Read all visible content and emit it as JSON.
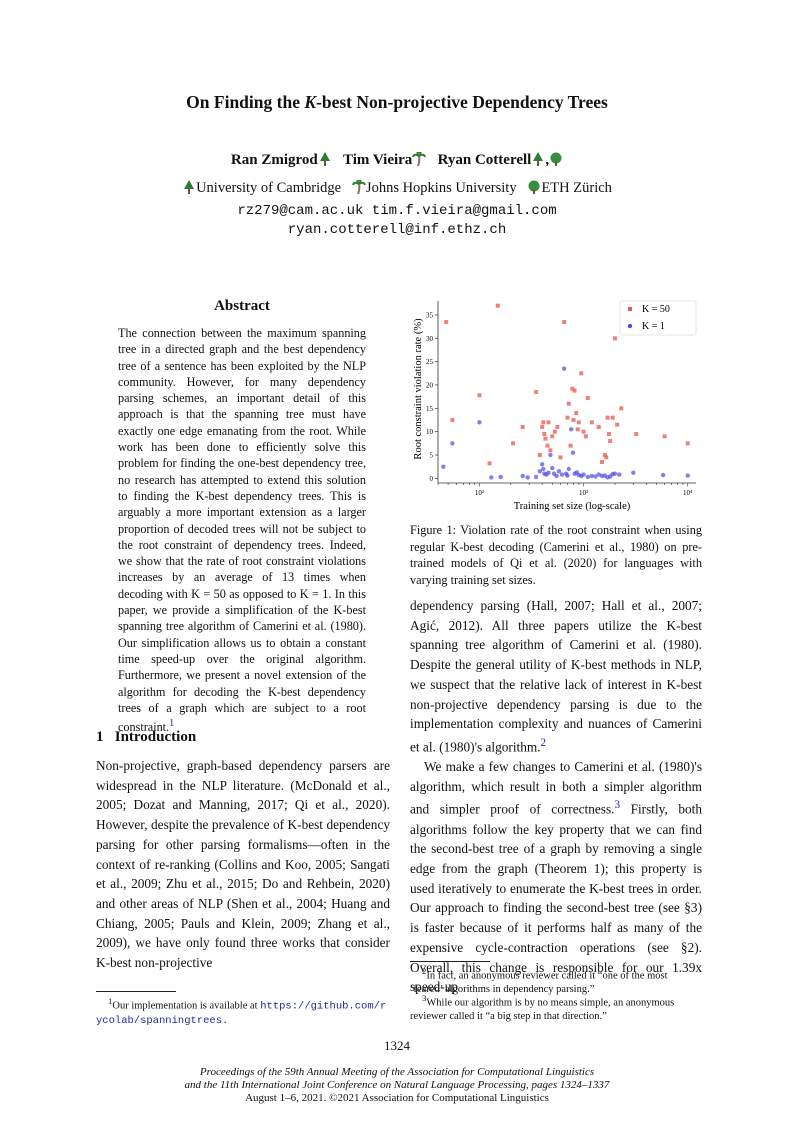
{
  "title": "On Finding the K-best Non-projective Dependency Trees",
  "authors": [
    "Ran Zmigrod",
    "Tim Vieira",
    "Ryan Cotterell"
  ],
  "affiliations": [
    "University of Cambridge",
    "Johns Hopkins University",
    "ETH Zürich"
  ],
  "emails": [
    "rz279@cam.ac.uk",
    "tim.f.vieira@gmail.com",
    "ryan.cotterell@inf.ethz.ch"
  ],
  "abstract": {
    "heading": "Abstract",
    "text": "The connection between the maximum spanning tree in a directed graph and the best dependency tree of a sentence has been exploited by the NLP community. However, for many dependency parsing schemes, an important detail of this approach is that the spanning tree must have exactly one edge emanating from the root. While work has been done to efficiently solve this problem for finding the one-best dependency tree, no research has attempted to extend this solution to finding the K-best dependency trees. This is arguably a more important extension as a larger proportion of decoded trees will not be subject to the root constraint of dependency trees. Indeed, we show that the rate of root constraint violations increases by an average of 13 times when decoding with K = 50 as opposed to K = 1. In this paper, we provide a simplification of the K-best spanning tree algorithm of Camerini et al. (1980). Our simplification allows us to obtain a constant time speed-up over the original algorithm. Furthermore, we present a novel extension of the algorithm for decoding the K-best dependency trees of a graph which are subject to a root constraint.",
    "footnote_mark": "1"
  },
  "intro": {
    "heading": "1   Introduction",
    "text": "Non-projective, graph-based dependency parsers are widespread in the NLP literature. (McDonald et al., 2005; Dozat and Manning, 2017; Qi et al., 2020). However, despite the prevalence of K-best dependency parsing for other parsing formalisms—often in the context of re-ranking (Collins and Koo, 2005; Sangati et al., 2009; Zhu et al., 2015; Do and Rehbein, 2020) and other areas of NLP (Shen et al., 2004; Huang and Chiang, 2005; Pauls and Klein, 2009; Zhang et al., 2009), we have only found three works that consider K-best non-projective"
  },
  "footnote1": {
    "text": "Our implementation is available at",
    "url": "https://github.com/rycolab/spanningtrees."
  },
  "figure_caption": "Figure 1: Violation rate of the root constraint when using regular K-best decoding (Camerini et al., 1980) on pre-trained models of Qi et al. (2020) for languages with varying training set sizes.",
  "right_col": {
    "para1": "dependency parsing (Hall, 2007; Hall et al., 2007; Agić, 2012). All three papers utilize the K-best spanning tree algorithm of Camerini et al. (1980). Despite the general utility of K-best methods in NLP, we suspect that the relative lack of interest in K-best non-projective dependency parsing is due to the implementation complexity and nuances of Camerini et al. (1980)'s algorithm.",
    "para1_mark": "2",
    "para2": "We make a few changes to Camerini et al. (1980)'s algorithm, which result in both a simpler algorithm and simpler proof of correctness.",
    "para2_mark": "3",
    "para3": "Firstly, both algorithms follow the key property that we can find the second-best tree of a graph by removing a single edge from the graph (Theorem 1); this property is used iteratively to enumerate the K-best trees in order. Our approach to finding the second-best tree (see §3) is faster because of it performs half as many of the expensive cycle-contraction operations (see §2). Overall, this change is responsible for our 1.39x speed-up"
  },
  "footnote2": "In fact, an anonymous reviewer called it “one of the most ‘feared’ algorithms in dependency parsing.”",
  "footnote3": "While our algorithm is by no means simple, an anonymous reviewer called it “a big step in that direction.”",
  "page_number": "1324",
  "proceedings": {
    "line1": "Proceedings of the 59th Annual Meeting of the Association for Computational Linguistics",
    "line2": "and the 11th International Joint Conference on Natural Language Processing, pages 1324–1337",
    "line3": "August 1–6, 2021. ©2021 Association for Computational Linguistics"
  },
  "colors": {
    "k50": "#e8584e",
    "k1": "#4a4ae8",
    "link": "#1a2e9a"
  },
  "chart_data": {
    "type": "scatter",
    "xlabel": "Training set size (log-scale)",
    "ylabel": "Root constraint violation rate (%)",
    "xscale": "log",
    "xlim": [
      40,
      12000
    ],
    "ylim": [
      -1,
      38
    ],
    "yticks": [
      0,
      5,
      10,
      15,
      20,
      25,
      30,
      35
    ],
    "xticks": [
      100,
      1000,
      10000
    ],
    "xtick_labels": [
      "10²",
      "10³",
      "10⁴"
    ],
    "legend": "top-right",
    "series": [
      {
        "name": "K = 50",
        "marker": "square",
        "points": [
          [
            48,
            33.5
          ],
          [
            55,
            12.5
          ],
          [
            100,
            17.8
          ],
          [
            125,
            3.2
          ],
          [
            150,
            37
          ],
          [
            210,
            7.5
          ],
          [
            260,
            11
          ],
          [
            350,
            18.5
          ],
          [
            380,
            5
          ],
          [
            400,
            11
          ],
          [
            410,
            12
          ],
          [
            420,
            9.5
          ],
          [
            430,
            8.5
          ],
          [
            450,
            7
          ],
          [
            460,
            12
          ],
          [
            480,
            6
          ],
          [
            500,
            9
          ],
          [
            530,
            10
          ],
          [
            560,
            11
          ],
          [
            600,
            4.5
          ],
          [
            650,
            33.5
          ],
          [
            700,
            13
          ],
          [
            720,
            16
          ],
          [
            750,
            7
          ],
          [
            780,
            19.2
          ],
          [
            800,
            12.5
          ],
          [
            820,
            18.8
          ],
          [
            850,
            14
          ],
          [
            880,
            10.5
          ],
          [
            900,
            12
          ],
          [
            950,
            22.5
          ],
          [
            1000,
            10
          ],
          [
            1050,
            9
          ],
          [
            1100,
            17.2
          ],
          [
            1200,
            12
          ],
          [
            1400,
            11
          ],
          [
            1500,
            3.5
          ],
          [
            1600,
            5
          ],
          [
            1650,
            4.5
          ],
          [
            1700,
            13
          ],
          [
            1750,
            9.5
          ],
          [
            1800,
            8
          ],
          [
            1900,
            13
          ],
          [
            2000,
            30
          ],
          [
            2100,
            11.5
          ],
          [
            2300,
            15
          ],
          [
            3200,
            9.5
          ],
          [
            6000,
            9
          ],
          [
            10000,
            7.5
          ]
        ]
      },
      {
        "name": "K = 1",
        "marker": "circle",
        "points": [
          [
            45,
            2.5
          ],
          [
            55,
            7.5
          ],
          [
            100,
            12
          ],
          [
            130,
            0.2
          ],
          [
            160,
            0.3
          ],
          [
            260,
            0.5
          ],
          [
            290,
            0.2
          ],
          [
            350,
            0.3
          ],
          [
            380,
            1.5
          ],
          [
            400,
            3
          ],
          [
            410,
            2
          ],
          [
            420,
            1
          ],
          [
            440,
            0.8
          ],
          [
            460,
            1.2
          ],
          [
            480,
            5
          ],
          [
            500,
            2.2
          ],
          [
            520,
            1
          ],
          [
            550,
            0.5
          ],
          [
            580,
            1.5
          ],
          [
            620,
            0.8
          ],
          [
            650,
            23.5
          ],
          [
            680,
            1
          ],
          [
            700,
            0.6
          ],
          [
            720,
            2
          ],
          [
            760,
            10.5
          ],
          [
            790,
            5.5
          ],
          [
            820,
            1
          ],
          [
            860,
            1.3
          ],
          [
            900,
            0.7
          ],
          [
            950,
            0.5
          ],
          [
            1000,
            0.8
          ],
          [
            1100,
            0.3
          ],
          [
            1200,
            0.5
          ],
          [
            1300,
            0.4
          ],
          [
            1400,
            0.8
          ],
          [
            1500,
            0.5
          ],
          [
            1600,
            0.6
          ],
          [
            1700,
            0.2
          ],
          [
            1800,
            0.4
          ],
          [
            1900,
            0.9
          ],
          [
            2000,
            1
          ],
          [
            2200,
            0.8
          ],
          [
            3000,
            1.2
          ],
          [
            5800,
            0.7
          ],
          [
            10000,
            0.6
          ]
        ]
      }
    ]
  }
}
